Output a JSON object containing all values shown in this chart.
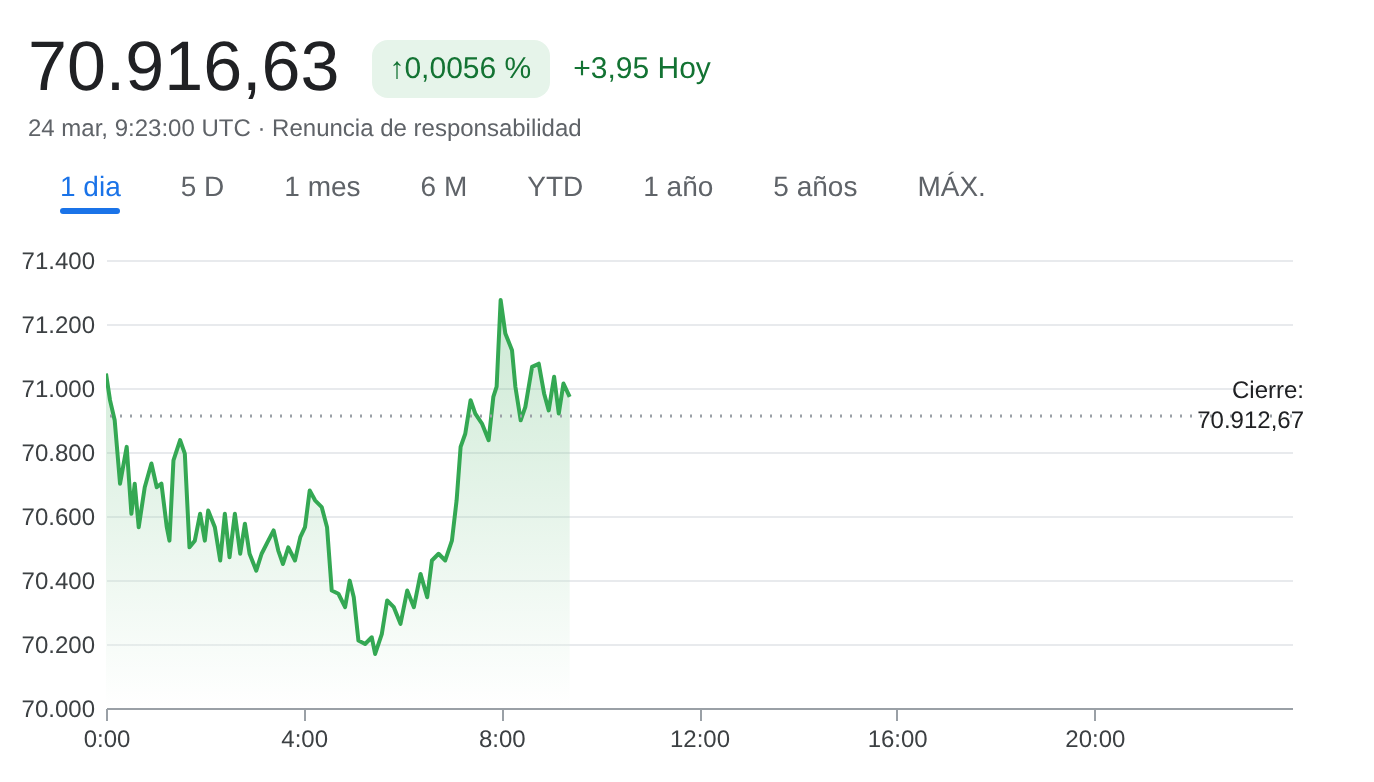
{
  "chart_data": {
    "type": "area",
    "title": "70.916,63",
    "subtitle": "24 mar, 9:23:00 UTC · Renuncia de responsabilidad",
    "annotations": [
      "↑0,0056 %",
      "+3,95 Hoy",
      "1 dia",
      "5 D",
      "1 mes",
      "6 M",
      "YTD",
      "1 año",
      "5 años",
      "MÁX."
    ],
    "x": [
      0,
      0.081,
      0.176,
      0.284,
      0.419,
      0.514,
      0.581,
      0.662,
      0.784,
      0.919,
      1.027,
      1.122,
      1.23,
      1.284,
      1.365,
      1.5,
      1.595,
      1.689,
      1.797,
      1.905,
      2.0,
      2.068,
      2.203,
      2.311,
      2.405,
      2.5,
      2.608,
      2.716,
      2.811,
      2.905,
      3.041,
      3.149,
      3.284,
      3.392,
      3.486,
      3.581,
      3.689,
      3.824,
      3.932,
      4.027,
      4.122,
      4.23,
      4.365,
      4.473,
      4.568,
      4.703,
      4.838,
      4.932,
      5.014,
      5.108,
      5.243,
      5.378,
      5.446,
      5.581,
      5.689,
      5.824,
      5.959,
      6.095,
      6.23,
      6.365,
      6.5,
      6.595,
      6.73,
      6.865,
      7.0,
      7.095,
      7.176,
      7.27,
      7.378,
      7.473,
      7.608,
      7.743,
      7.838,
      7.905,
      7.986,
      8.081,
      8.216,
      8.284,
      8.392,
      8.486,
      8.622,
      8.757,
      8.865,
      8.959,
      9.068,
      9.162,
      9.257,
      9.383
    ],
    "series": [
      {
        "color": "#34a853",
        "values": [
          71045,
          70962,
          70899,
          70701,
          70816,
          70607,
          70701,
          70565,
          70690,
          70764,
          70690,
          70701,
          70565,
          70523,
          70774,
          70837,
          70795,
          70502,
          70523,
          70607,
          70523,
          70617,
          70565,
          70461,
          70607,
          70471,
          70607,
          70482,
          70576,
          70482,
          70429,
          70482,
          70523,
          70555,
          70492,
          70450,
          70502,
          70461,
          70534,
          70565,
          70680,
          70649,
          70628,
          70565,
          70367,
          70357,
          70315,
          70398,
          70346,
          70211,
          70200,
          70221,
          70169,
          70231,
          70336,
          70315,
          70263,
          70367,
          70315,
          70419,
          70346,
          70461,
          70482,
          70461,
          70523,
          70649,
          70816,
          70857,
          70962,
          70920,
          70889,
          70837,
          70972,
          71004,
          71275,
          71170,
          71118,
          71004,
          70899,
          70941,
          71066,
          71076,
          70983,
          70930,
          71035,
          70920,
          71014,
          70972
        ]
      }
    ],
    "xlim": [
      0,
      24
    ],
    "xticks": [
      {
        "value": 0,
        "label": "0:00"
      },
      {
        "value": 4,
        "label": "4:00"
      },
      {
        "value": 8,
        "label": "8:00"
      },
      {
        "value": 12,
        "label": "12:00"
      },
      {
        "value": 16,
        "label": "16:00"
      },
      {
        "value": 20,
        "label": "20:00"
      }
    ],
    "ylim": [
      70000,
      71400
    ],
    "yticks": [
      {
        "value": 70000,
        "label": "70.000"
      },
      {
        "value": 70200,
        "label": "70.200"
      },
      {
        "value": 70400,
        "label": "70.400"
      },
      {
        "value": 70600,
        "label": "70.600"
      },
      {
        "value": 70800,
        "label": "70.800"
      },
      {
        "value": 71000,
        "label": "71.000"
      },
      {
        "value": 71200,
        "label": "71.200"
      },
      {
        "value": 71400,
        "label": "71.400"
      }
    ],
    "ref_lines": [
      {
        "axis": "y",
        "value": 70912.67,
        "label": "Cierre: 70.912,67",
        "line_style": "dotted",
        "color": "#9aa0a6"
      }
    ],
    "grid": "y",
    "marker": "none",
    "line_style": "solid"
  }
}
